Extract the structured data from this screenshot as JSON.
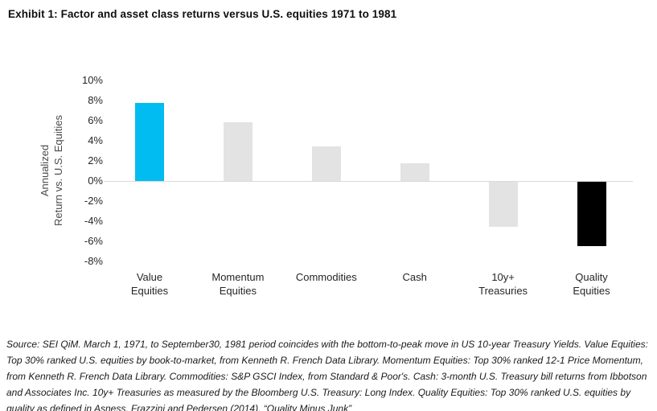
{
  "page": {
    "title": "Exhibit 1: Factor and asset class returns versus U.S. equities 1971 to 1981",
    "source_note": "Source: SEI QiM. March 1, 1971, to September30, 1981 period coincides with the bottom-to-peak move in US 10-year Treasury Yields. Value Equities: Top 30% ranked U.S. equities by book-to-market, from Kenneth R. French Data Library. Momentum Equities: Top 30% ranked 12-1 Price Momentum, from Kenneth R. French Data Library. Commodities: S&P GSCI Index, from Standard & Poor's. Cash: 3-month U.S. Treasury bill returns from Ibbotson and Associates Inc. 10y+ Treasuries as measured by the Bloomberg U.S. Treasury: Long Index. Quality Equities: Top 30% ranked U.S. equities by quality as defined in Asness, Frazzini and Pedersen (2014), “Quality Minus Junk”"
  },
  "chart_data": {
    "type": "bar",
    "title": "Exhibit 1: Factor and asset class returns versus U.S. equities 1971 to 1981",
    "categories": [
      "Value Equities",
      "Momentum Equities",
      "Commodities",
      "Cash",
      "10y+ Treasuries",
      "Quality Equities"
    ],
    "category_label_lines": [
      [
        "Value",
        "Equities"
      ],
      [
        "Momentum",
        "Equities"
      ],
      [
        "Commodities"
      ],
      [
        "Cash"
      ],
      [
        "10y+",
        "Treasuries"
      ],
      [
        "Quality",
        "Equities"
      ]
    ],
    "values": [
      7.7,
      5.8,
      3.4,
      1.7,
      -4.5,
      -6.4
    ],
    "unit": "%",
    "bar_colors": [
      "#00BCF0",
      "#E3E3E3",
      "#E3E3E3",
      "#E3E3E3",
      "#E3E3E3",
      "#000000"
    ],
    "ylabel_lines": [
      "Annualized",
      "Return vs. U.S. Equities"
    ],
    "ytick_labels": [
      "10%",
      "8%",
      "6%",
      "4%",
      "2%",
      "0%",
      "-2%",
      "-4%",
      "-6%",
      "-8%"
    ],
    "ytick_values": [
      10,
      8,
      6,
      4,
      2,
      0,
      -2,
      -4,
      -6,
      -8
    ],
    "ylim": [
      -8,
      10
    ],
    "grid": false,
    "legend": "none"
  },
  "colors": {
    "background": "#FFFFFF",
    "accent_cyan": "#00BCF0",
    "neutral_gray": "#E3E3E3",
    "negative_black": "#000000",
    "axis_line": "#D9D9D9",
    "title_text": "#0F0F0F",
    "label_text": "#262626"
  }
}
